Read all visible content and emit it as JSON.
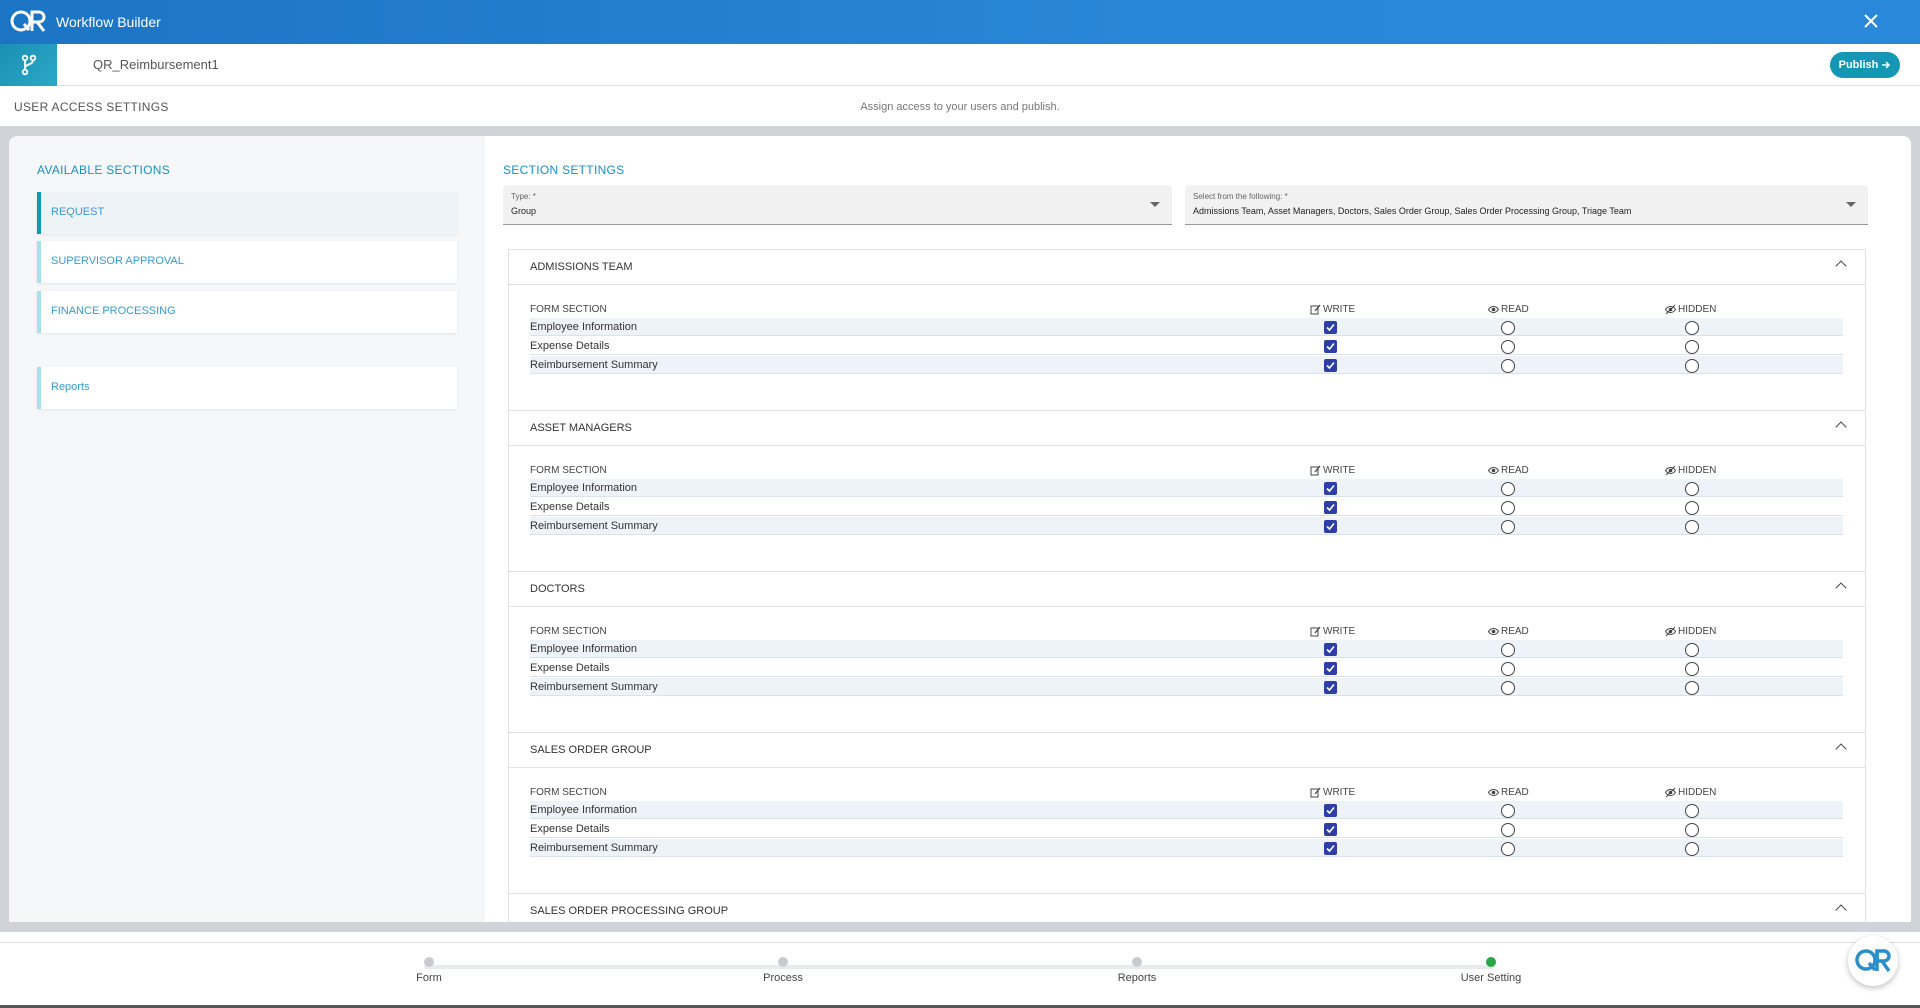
{
  "app": {
    "title": "Workflow Builder",
    "workflow_name": "QR_Reimbursement1",
    "publish_label": "Publish",
    "close_icon": "close-icon",
    "brand_color": "#1c74c4",
    "accent_color": "#1496b5"
  },
  "settings": {
    "title": "USER ACCESS SETTINGS",
    "subtitle": "Assign access to your users and publish."
  },
  "left": {
    "title": "AVAILABLE SECTIONS",
    "sections": [
      {
        "label": "REQUEST",
        "active": true
      },
      {
        "label": "SUPERVISOR APPROVAL",
        "active": false
      },
      {
        "label": "FINANCE PROCESSING",
        "active": false
      }
    ],
    "reports_label": "Reports"
  },
  "right": {
    "title": "SECTION SETTINGS",
    "type_label": "Type: *",
    "type_value": "Group",
    "select_label": "Select from the following: *",
    "select_value": "Admissions Team, Asset Managers, Doctors, Sales Order Group, Sales Order Processing Group, Triage Team"
  },
  "table_headers": {
    "section": "FORM SECTION",
    "write": "WRITE",
    "read": "READ",
    "hidden": "HIDDEN"
  },
  "groups": [
    {
      "name": "ADMISSIONS TEAM",
      "rows": [
        {
          "name": "Employee Information",
          "access": "write"
        },
        {
          "name": "Expense Details",
          "access": "write"
        },
        {
          "name": "Reimbursement Summary",
          "access": "write"
        }
      ]
    },
    {
      "name": "ASSET MANAGERS",
      "rows": [
        {
          "name": "Employee Information",
          "access": "write"
        },
        {
          "name": "Expense Details",
          "access": "write"
        },
        {
          "name": "Reimbursement Summary",
          "access": "write"
        }
      ]
    },
    {
      "name": "DOCTORS",
      "rows": [
        {
          "name": "Employee Information",
          "access": "write"
        },
        {
          "name": "Expense Details",
          "access": "write"
        },
        {
          "name": "Reimbursement Summary",
          "access": "write"
        }
      ]
    },
    {
      "name": "SALES ORDER GROUP",
      "rows": [
        {
          "name": "Employee Information",
          "access": "write"
        },
        {
          "name": "Expense Details",
          "access": "write"
        },
        {
          "name": "Reimbursement Summary",
          "access": "write"
        }
      ]
    },
    {
      "name": "SALES ORDER PROCESSING GROUP",
      "rows": []
    }
  ],
  "steps": [
    {
      "label": "Form",
      "done": false
    },
    {
      "label": "Process",
      "done": false
    },
    {
      "label": "Reports",
      "done": false
    },
    {
      "label": "User Setting",
      "done": true
    }
  ]
}
